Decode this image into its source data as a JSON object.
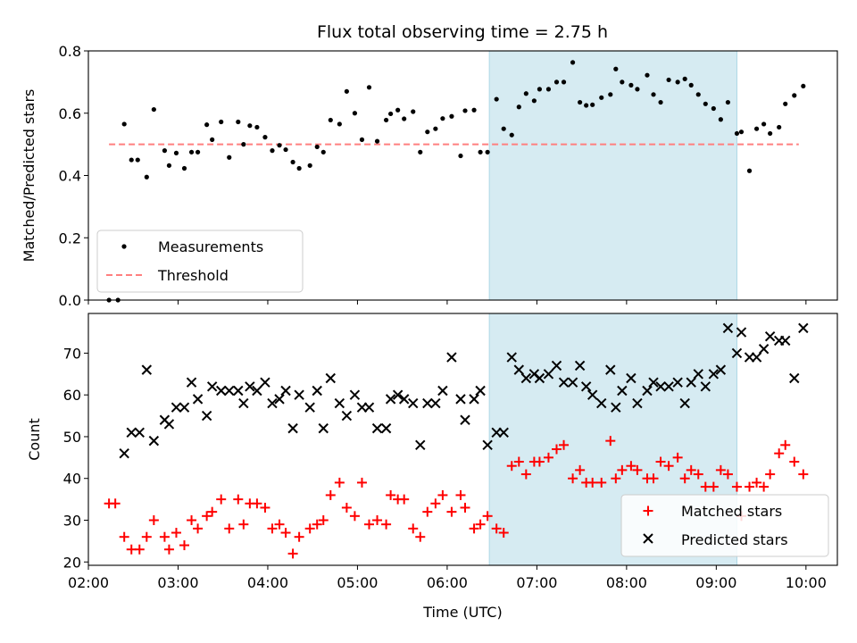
{
  "figure_title": "Flux total observing time = 2.75 h",
  "colors": {
    "measurement": "#000000",
    "threshold": "#ff7f7f",
    "matched": "#ff0000",
    "predicted": "#000000",
    "shade": "#add8e6"
  },
  "chart_data": [
    {
      "type": "scatter",
      "id": "top",
      "title": "Flux total observing time = 2.75 h",
      "xlabel": "",
      "ylabel": "Matched/Predicted stars",
      "xlim": [
        2.0,
        10.35
      ],
      "ylim": [
        0.0,
        0.8
      ],
      "yticks": [
        0.0,
        0.2,
        0.4,
        0.6,
        0.8
      ],
      "ytick_labels": [
        "0.0",
        "0.2",
        "0.4",
        "0.6",
        "0.8"
      ],
      "shaded_x": [
        6.47,
        9.23
      ],
      "threshold": {
        "y": 0.5,
        "x": [
          2.23,
          9.92
        ],
        "label": "Threshold",
        "style": "dashed"
      },
      "legend": {
        "position": "lower-left",
        "entries": [
          "Measurements",
          "Threshold"
        ]
      },
      "series": [
        {
          "name": "Measurements",
          "marker": "dot",
          "x": [
            2.23,
            2.33,
            2.4,
            2.48,
            2.55,
            2.65,
            2.73,
            2.85,
            2.9,
            2.98,
            3.07,
            3.15,
            3.22,
            3.32,
            3.38,
            3.48,
            3.57,
            3.67,
            3.73,
            3.8,
            3.88,
            3.97,
            4.05,
            4.13,
            4.2,
            4.28,
            4.35,
            4.47,
            4.55,
            4.62,
            4.7,
            4.8,
            4.88,
            4.97,
            5.05,
            5.13,
            5.22,
            5.32,
            5.37,
            5.45,
            5.52,
            5.62,
            5.7,
            5.78,
            5.87,
            5.95,
            6.05,
            6.15,
            6.2,
            6.3,
            6.37,
            6.45,
            6.55,
            6.63,
            6.72,
            6.8,
            6.88,
            6.97,
            7.03,
            7.13,
            7.22,
            7.3,
            7.4,
            7.48,
            7.55,
            7.62,
            7.72,
            7.82,
            7.88,
            7.95,
            8.05,
            8.12,
            8.23,
            8.3,
            8.38,
            8.47,
            8.57,
            8.65,
            8.72,
            8.8,
            8.88,
            8.97,
            9.05,
            9.13,
            9.23,
            9.28,
            9.37,
            9.45,
            9.53,
            9.6,
            9.7,
            9.77,
            9.87,
            9.97
          ],
          "y": [
            0.0,
            0.0,
            0.565,
            0.45,
            0.45,
            0.395,
            0.612,
            0.48,
            0.432,
            0.472,
            0.423,
            0.475,
            0.475,
            0.563,
            0.515,
            0.572,
            0.458,
            0.572,
            0.5,
            0.56,
            0.555,
            0.523,
            0.48,
            0.497,
            0.483,
            0.443,
            0.423,
            0.432,
            0.492,
            0.475,
            0.578,
            0.565,
            0.67,
            0.6,
            0.515,
            0.683,
            0.51,
            0.578,
            0.598,
            0.61,
            0.582,
            0.605,
            0.475,
            0.54,
            0.55,
            0.583,
            0.59,
            0.463,
            0.608,
            0.61,
            0.475,
            0.475,
            0.645,
            0.55,
            0.53,
            0.62,
            0.663,
            0.64,
            0.677,
            0.677,
            0.7,
            0.7,
            0.763,
            0.635,
            0.625,
            0.627,
            0.65,
            0.66,
            0.742,
            0.7,
            0.69,
            0.677,
            0.722,
            0.66,
            0.635,
            0.707,
            0.7,
            0.71,
            0.69,
            0.66,
            0.63,
            0.615,
            0.58,
            0.635,
            0.535,
            0.54,
            0.415,
            0.55,
            0.565,
            0.535,
            0.555,
            0.63,
            0.657,
            0.687
          ]
        }
      ]
    },
    {
      "type": "scatter",
      "id": "bottom",
      "title": "",
      "xlabel": "Time (UTC)",
      "ylabel": "Count",
      "xlim": [
        2.0,
        10.35
      ],
      "ylim": [
        19.2,
        79.5
      ],
      "yticks": [
        20,
        30,
        40,
        50,
        60,
        70
      ],
      "ytick_labels": [
        "20",
        "30",
        "40",
        "50",
        "60",
        "70"
      ],
      "xticks": [
        2,
        3,
        4,
        5,
        6,
        7,
        8,
        9,
        10
      ],
      "xtick_labels": [
        "02:00",
        "03:00",
        "04:00",
        "05:00",
        "06:00",
        "07:00",
        "08:00",
        "09:00",
        "10:00"
      ],
      "shaded_x": [
        6.47,
        9.23
      ],
      "legend": {
        "position": "lower-right",
        "entries": [
          "Matched stars",
          "Predicted stars"
        ]
      },
      "series": [
        {
          "name": "Matched stars",
          "marker": "plus",
          "x": [
            2.23,
            2.3,
            2.4,
            2.48,
            2.57,
            2.65,
            2.73,
            2.85,
            2.9,
            2.98,
            3.07,
            3.15,
            3.22,
            3.32,
            3.38,
            3.48,
            3.57,
            3.67,
            3.73,
            3.8,
            3.88,
            3.97,
            4.05,
            4.13,
            4.2,
            4.28,
            4.35,
            4.47,
            4.55,
            4.62,
            4.7,
            4.8,
            4.88,
            4.97,
            5.05,
            5.13,
            5.22,
            5.32,
            5.37,
            5.45,
            5.52,
            5.62,
            5.7,
            5.78,
            5.87,
            5.95,
            6.05,
            6.15,
            6.2,
            6.3,
            6.37,
            6.45,
            6.55,
            6.63,
            6.72,
            6.8,
            6.88,
            6.97,
            7.03,
            7.13,
            7.22,
            7.3,
            7.4,
            7.48,
            7.55,
            7.62,
            7.72,
            7.82,
            7.88,
            7.95,
            8.05,
            8.12,
            8.23,
            8.3,
            8.38,
            8.47,
            8.57,
            8.65,
            8.72,
            8.8,
            8.88,
            8.97,
            9.05,
            9.13,
            9.23,
            9.28,
            9.37,
            9.45,
            9.53,
            9.6,
            9.7,
            9.77,
            9.87,
            9.97
          ],
          "y": [
            34,
            34,
            26,
            23,
            23,
            26,
            30,
            26,
            23,
            27,
            24,
            30,
            28,
            31,
            32,
            35,
            28,
            35,
            29,
            34,
            34,
            33,
            28,
            29,
            27,
            22,
            26,
            28,
            29,
            30,
            36,
            39,
            33,
            31,
            39,
            29,
            30,
            29,
            36,
            35,
            35,
            28,
            26,
            32,
            34,
            36,
            32,
            36,
            33,
            28,
            29,
            31,
            28,
            27,
            43,
            44,
            41,
            44,
            44,
            45,
            47,
            48,
            40,
            42,
            39,
            39,
            39,
            49,
            40,
            42,
            43,
            42,
            40,
            40,
            44,
            43,
            45,
            40,
            42,
            41,
            38,
            38,
            42,
            41,
            38,
            31,
            38,
            39,
            38,
            41,
            46,
            48,
            44,
            41
          ]
        },
        {
          "name": "Predicted stars",
          "marker": "x",
          "x": [
            2.4,
            2.48,
            2.57,
            2.65,
            2.73,
            2.85,
            2.9,
            2.98,
            3.07,
            3.15,
            3.22,
            3.32,
            3.38,
            3.48,
            3.57,
            3.67,
            3.73,
            3.8,
            3.88,
            3.97,
            4.05,
            4.13,
            4.2,
            4.28,
            4.35,
            4.47,
            4.55,
            4.62,
            4.7,
            4.8,
            4.88,
            4.97,
            5.05,
            5.13,
            5.22,
            5.32,
            5.37,
            5.45,
            5.52,
            5.62,
            5.7,
            5.78,
            5.87,
            5.95,
            6.05,
            6.15,
            6.2,
            6.3,
            6.37,
            6.45,
            6.55,
            6.63,
            6.72,
            6.8,
            6.88,
            6.97,
            7.03,
            7.13,
            7.22,
            7.3,
            7.4,
            7.48,
            7.55,
            7.62,
            7.72,
            7.82,
            7.88,
            7.95,
            8.05,
            8.12,
            8.23,
            8.3,
            8.38,
            8.47,
            8.57,
            8.65,
            8.72,
            8.8,
            8.88,
            8.97,
            9.05,
            9.13,
            9.23,
            9.28,
            9.37,
            9.45,
            9.53,
            9.6,
            9.7,
            9.77,
            9.87,
            9.97
          ],
          "y": [
            46,
            51,
            51,
            66,
            49,
            54,
            53,
            57,
            57,
            63,
            59,
            55,
            62,
            61,
            61,
            61,
            58,
            62,
            61,
            63,
            58,
            59,
            61,
            52,
            60,
            57,
            61,
            52,
            64,
            58,
            55,
            60,
            57,
            57,
            52,
            52,
            59,
            60,
            59,
            58,
            48,
            58,
            58,
            61,
            69,
            59,
            54,
            59,
            61,
            48,
            51,
            51,
            69,
            66,
            64,
            65,
            64,
            65,
            67,
            63,
            63,
            67,
            62,
            60,
            58,
            66,
            57,
            61,
            64,
            58,
            61,
            63,
            62,
            62,
            63,
            58,
            63,
            65,
            62,
            65,
            66,
            76,
            70,
            75,
            69,
            69,
            71,
            74,
            73,
            73,
            64,
            76
          ]
        }
      ]
    }
  ]
}
